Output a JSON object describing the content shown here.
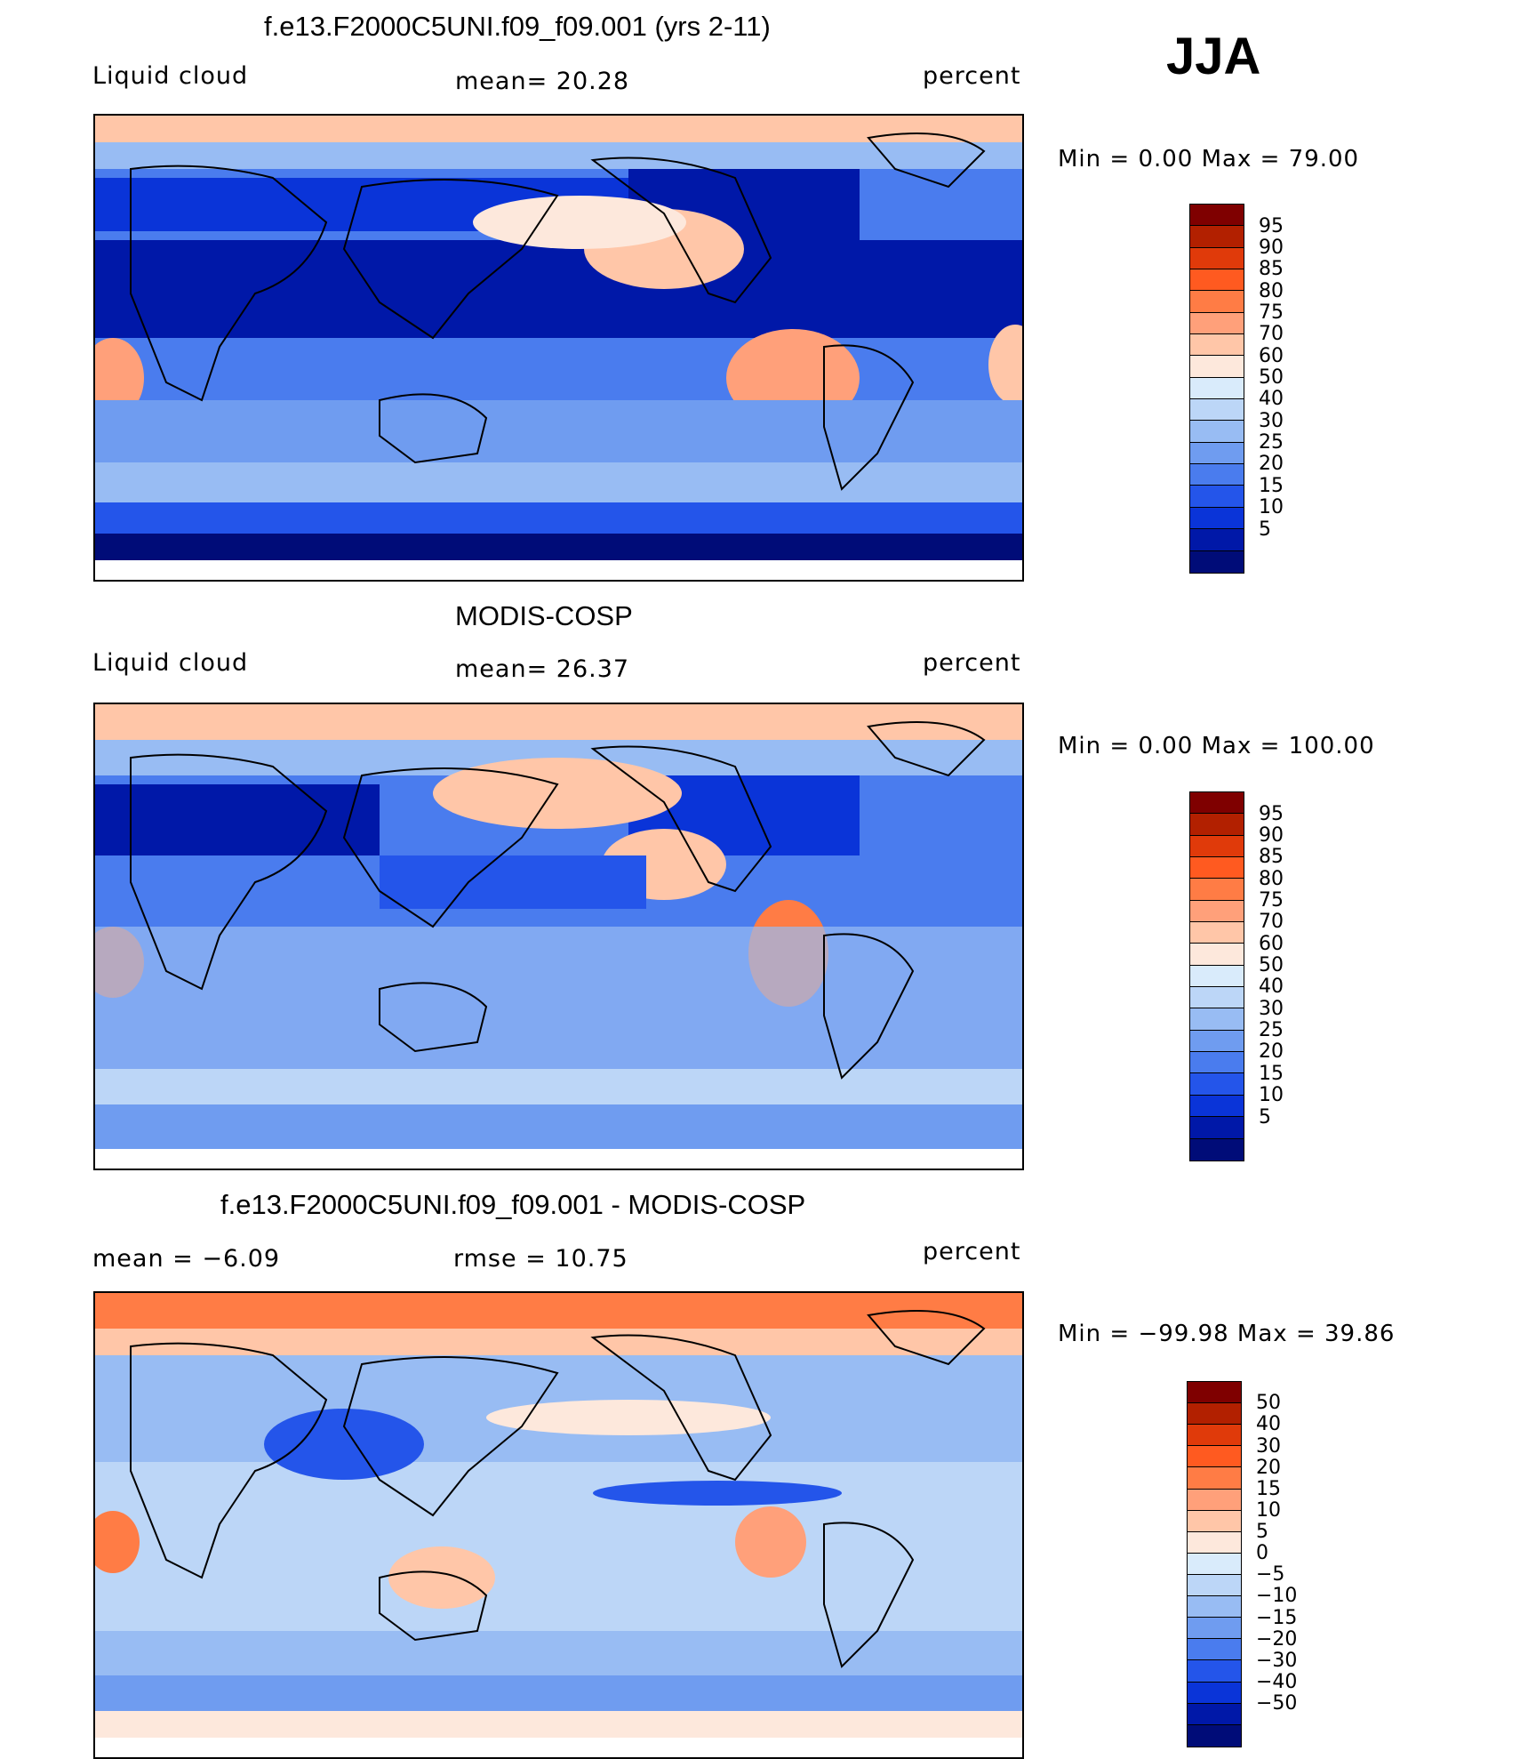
{
  "season": "JJA",
  "panels": [
    {
      "id": "model",
      "title": "f.e13.F2000C5UNI.f09_f09.001 (yrs 2-11)",
      "left_label": "Liquid cloud",
      "center_label": "mean=   20.28",
      "right_label": "percent",
      "minmax": "Min  =     0.00  Max  =    79.00",
      "colorbar": {
        "colors": [
          "#7f0000",
          "#b22000",
          "#e03a0a",
          "#ff5a20",
          "#ff7c45",
          "#ffa07a",
          "#ffc6a8",
          "#fde8dc",
          "#d9ebfb",
          "#bcd6f7",
          "#98bcf3",
          "#6f9cf0",
          "#4a7cee",
          "#2455ea",
          "#0a34d8",
          "#0018a8",
          "#000c78"
        ],
        "labels": [
          "95",
          "90",
          "85",
          "80",
          "75",
          "70",
          "60",
          "50",
          "40",
          "30",
          "25",
          "20",
          "15",
          "10",
          "5"
        ]
      }
    },
    {
      "id": "obs",
      "title": "MODIS-COSP",
      "left_label": "Liquid cloud",
      "center_label": "mean=   26.37",
      "right_label": "percent",
      "minmax": "Min  =     0.00  Max  =  100.00",
      "colorbar": {
        "colors": [
          "#7f0000",
          "#b22000",
          "#e03a0a",
          "#ff5a20",
          "#ff7c45",
          "#ffa07a",
          "#ffc6a8",
          "#fde8dc",
          "#d9ebfb",
          "#bcd6f7",
          "#98bcf3",
          "#6f9cf0",
          "#4a7cee",
          "#2455ea",
          "#0a34d8",
          "#0018a8",
          "#000c78"
        ],
        "labels": [
          "95",
          "90",
          "85",
          "80",
          "75",
          "70",
          "60",
          "50",
          "40",
          "30",
          "25",
          "20",
          "15",
          "10",
          "5"
        ]
      }
    },
    {
      "id": "diff",
      "title": "f.e13.F2000C5UNI.f09_f09.001 - MODIS-COSP",
      "left_label": "mean  =     −6.09",
      "center_label": "rmse  =     10.75",
      "right_label": "percent",
      "minmax": "Min  =  −99.98  Max  =    39.86",
      "colorbar": {
        "colors": [
          "#7f0000",
          "#b22000",
          "#e03a0a",
          "#ff5a20",
          "#ff7c45",
          "#ffa07a",
          "#ffc6a8",
          "#fde8dc",
          "#d9ebfb",
          "#bcd6f7",
          "#98bcf3",
          "#6f9cf0",
          "#4a7cee",
          "#2455ea",
          "#0a34d8",
          "#0018a8",
          "#000c78"
        ],
        "labels": [
          "50",
          "40",
          "30",
          "20",
          "15",
          "10",
          "5",
          "0",
          "−5",
          "−10",
          "−15",
          "−20",
          "−30",
          "−40",
          "−50"
        ]
      }
    }
  ]
}
